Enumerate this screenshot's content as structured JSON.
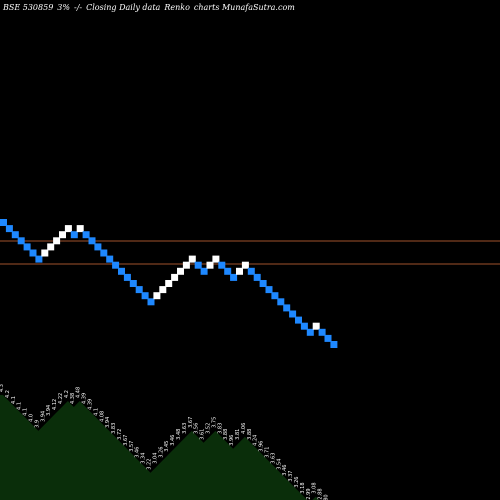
{
  "header": {
    "symbol": "BSE 530859",
    "change": "3%",
    "arrows": "-/-",
    "type": "Closing Daily data",
    "kind": "Renko",
    "site": "charts MunafaSutra.com"
  },
  "colors": {
    "background": "#000000",
    "up_brick": "#ffffff",
    "down_brick": "#1e88ff",
    "level_line": "#a0522d",
    "volume_fill": "#0a2e0a",
    "label_text": "#ffffff"
  },
  "chart_data": {
    "type": "renko",
    "brick_colors_sequence": [
      "down",
      "down",
      "down",
      "down",
      "down",
      "down",
      "down",
      "up",
      "up",
      "up",
      "up",
      "up",
      "down",
      "up",
      "down",
      "down",
      "down",
      "down",
      "down",
      "down",
      "down",
      "down",
      "down",
      "down",
      "down",
      "down",
      "up",
      "up",
      "up",
      "up",
      "up",
      "up",
      "up",
      "down",
      "down",
      "up",
      "up",
      "down",
      "down",
      "down",
      "up",
      "up",
      "down",
      "down",
      "down",
      "down",
      "down",
      "down",
      "down",
      "down",
      "down",
      "down",
      "down",
      "up",
      "down",
      "down",
      "down"
    ],
    "reference_lines": 2,
    "labels": [
      "4.3",
      "4.2",
      "4.1",
      "4.1",
      "4.1",
      "4.0",
      "3.9",
      "3.94",
      "3.94",
      "4.12",
      "4.22",
      "4.2",
      "4.38",
      "4.48",
      "4.39",
      "4.39",
      "4.1",
      "4.08",
      "3.94",
      "3.83",
      "3.72",
      "3.67",
      "3.57",
      "3.46",
      "3.34",
      "3.22",
      "3.04",
      "3.26",
      "3.45",
      "3.46",
      "3.48",
      "3.63",
      "3.67",
      "3.56",
      "3.61",
      "3.52",
      "3.75",
      "3.83",
      "3.88",
      "3.96",
      "3.81",
      "4.06",
      "3.88",
      "4.24",
      "3.96",
      "3.71",
      "3.63",
      "3.54",
      "3.46",
      "3.37",
      "3.26",
      "3.18",
      "2.99",
      "3.08",
      "2.88",
      "2.80",
      "2.53"
    ]
  }
}
